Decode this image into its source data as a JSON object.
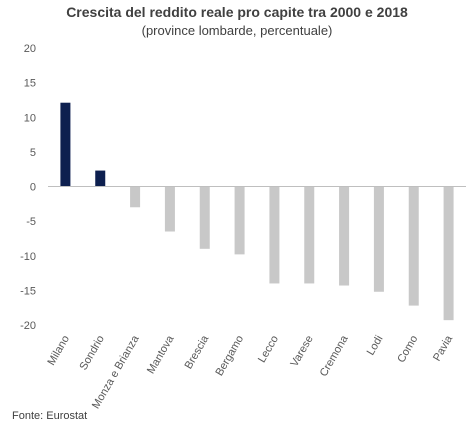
{
  "title": "Crescita del reddito reale pro capite tra 2000 e 2018",
  "subtitle": "(province lombarde, percentuale)",
  "source": "Fonte: Eurostat",
  "colors": {
    "highlight": "#0d1f4f",
    "default": "#c8c8c8",
    "axis": "#bfbfbf"
  },
  "chart_data": {
    "type": "bar",
    "title": "Crescita del reddito reale pro capite tra 2000 e 2018",
    "subtitle": "(province lombarde, percentuale)",
    "xlabel": "",
    "ylabel": "",
    "ylim": [
      -20,
      20
    ],
    "yticks": [
      20,
      15,
      10,
      5,
      0,
      -5,
      -10,
      -15,
      -20
    ],
    "grid": false,
    "categories": [
      "Milano",
      "Sondrio",
      "Monza e Brianza",
      "Mantova",
      "Brescia",
      "Bergamo",
      "Lecco",
      "Varese",
      "Cremona",
      "Lodi",
      "Como",
      "Pavia"
    ],
    "values": [
      12.1,
      2.3,
      -3.0,
      -6.5,
      -9.0,
      -9.8,
      -14.0,
      -14.0,
      -14.3,
      -15.2,
      -17.2,
      -19.3
    ],
    "highlighted": [
      "Milano",
      "Sondrio"
    ]
  }
}
